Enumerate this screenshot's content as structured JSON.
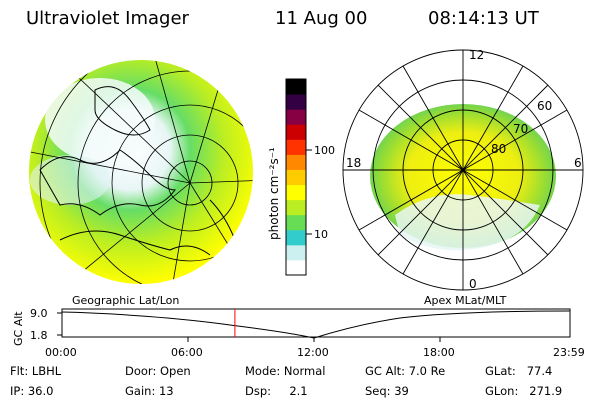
{
  "header": {
    "instrument": "Ultraviolet Imager",
    "date": "11 Aug 00",
    "time": "08:14:13 UT"
  },
  "colorbar": {
    "unit_label": "photon cm⁻²s⁻¹",
    "tick_100": "100",
    "tick_10": "10",
    "colors": [
      "#ffffff",
      "#ccf0f0",
      "#33cccc",
      "#66dd55",
      "#bbee22",
      "#ffff00",
      "#ffcc00",
      "#ff8800",
      "#ff3300",
      "#cc0000",
      "#880044",
      "#330044",
      "#000000"
    ]
  },
  "geo_map": {
    "caption": "Geographic Lat/Lon"
  },
  "polar_map": {
    "caption": "Apex MLat/MLT",
    "mlt_top": "12",
    "mlt_left": "18",
    "mlt_right": "6",
    "mlt_bottom": "0",
    "lat_60": "60",
    "lat_70": "70",
    "lat_80": "80"
  },
  "altitude_plot": {
    "ylabel": "GC Alt",
    "ytick_top": "9.0",
    "ytick_bottom": "1.8",
    "x_ticks": [
      "00:00",
      "06:00",
      "12:00",
      "18:00",
      "23:59"
    ],
    "marker_time": "08:14",
    "marker_color": "#ff0000"
  },
  "status": {
    "flt_label": "Flt:",
    "flt_value": "LBHL",
    "ip_label": "IP:",
    "ip_value": "36.0",
    "door_label": "Door:",
    "door_value": "Open",
    "gain_label": "Gain:",
    "gain_value": "13",
    "mode_label": "Mode:",
    "mode_value": "Normal",
    "dsp_label": "Dsp:",
    "dsp_value": "2.1",
    "gcalt_label": "GC Alt:",
    "gcalt_value": "7.0 Re",
    "seq_label": "Seq:",
    "seq_value": "39",
    "glat_label": "GLat:",
    "glat_value": "77.4",
    "glon_label": "GLon:",
    "glon_value": "271.9"
  }
}
